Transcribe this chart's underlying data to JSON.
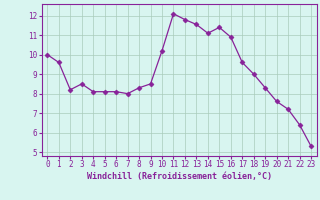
{
  "x": [
    0,
    1,
    2,
    3,
    4,
    5,
    6,
    7,
    8,
    9,
    10,
    11,
    12,
    13,
    14,
    15,
    16,
    17,
    18,
    19,
    20,
    21,
    22,
    23
  ],
  "y": [
    10.0,
    9.6,
    8.2,
    8.5,
    8.1,
    8.1,
    8.1,
    8.0,
    8.3,
    8.5,
    10.2,
    12.1,
    11.8,
    11.55,
    11.1,
    11.4,
    10.9,
    9.6,
    9.0,
    8.3,
    7.6,
    7.2,
    6.4,
    5.3
  ],
  "line_color": "#882299",
  "marker": "D",
  "marker_size": 2.5,
  "bg_color": "#d8f5f0",
  "grid_color": "#aaccbb",
  "xlabel": "Windchill (Refroidissement éolien,°C)",
  "xlabel_color": "#882299",
  "tick_color": "#882299",
  "axis_color": "#882299",
  "xlim": [
    -0.5,
    23.5
  ],
  "ylim": [
    4.8,
    12.6
  ],
  "yticks": [
    5,
    6,
    7,
    8,
    9,
    10,
    11,
    12
  ],
  "xticks": [
    0,
    1,
    2,
    3,
    4,
    5,
    6,
    7,
    8,
    9,
    10,
    11,
    12,
    13,
    14,
    15,
    16,
    17,
    18,
    19,
    20,
    21,
    22,
    23
  ]
}
